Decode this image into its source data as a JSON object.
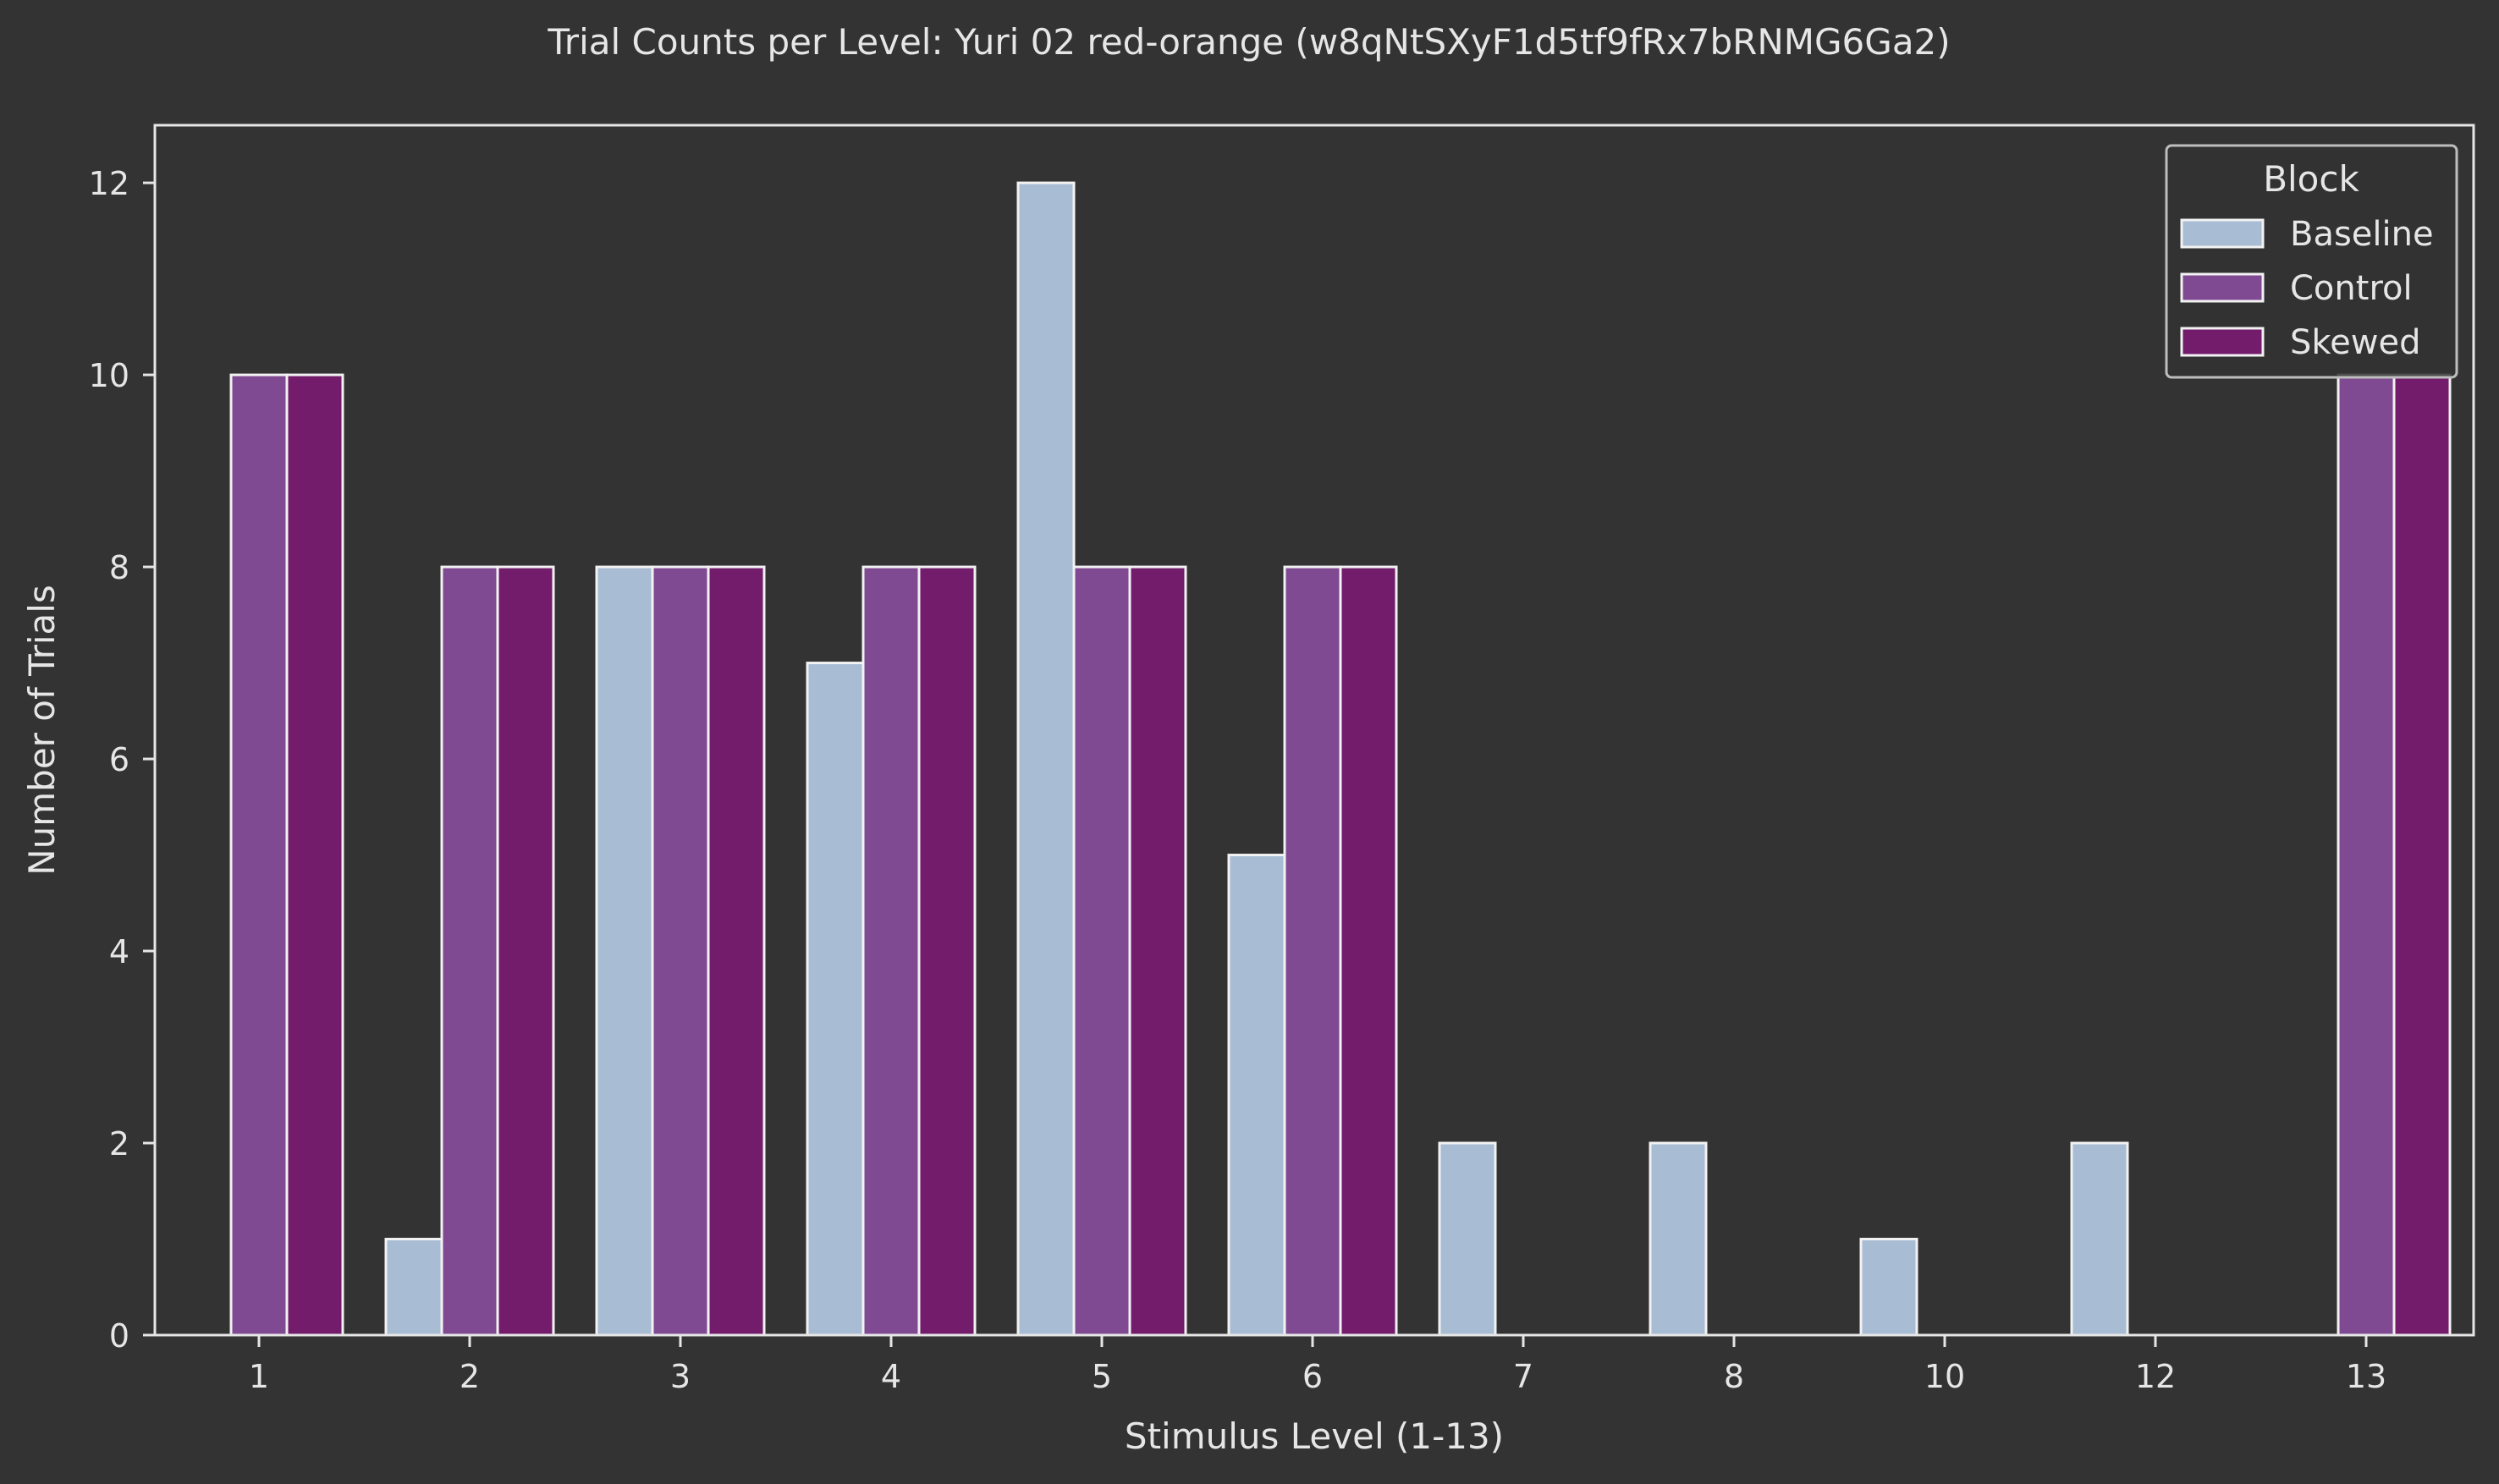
{
  "chart_data": {
    "type": "bar",
    "title": "Trial Counts per Level: Yuri 02 red-orange (w8qNtSXyF1d5tf9fRx7bRNMG6Ga2)",
    "xlabel": "Stimulus Level (1-13)",
    "ylabel": "Number of Trials",
    "categories": [
      "1",
      "2",
      "3",
      "4",
      "5",
      "6",
      "7",
      "8",
      "10",
      "12",
      "13"
    ],
    "series": [
      {
        "name": "Baseline",
        "color": "#a8bcd4",
        "values": [
          0,
          1,
          8,
          7,
          12,
          5,
          2,
          2,
          1,
          2,
          0
        ]
      },
      {
        "name": "Control",
        "color": "#7f4a91",
        "values": [
          10,
          8,
          8,
          8,
          8,
          8,
          0,
          0,
          0,
          0,
          10
        ]
      },
      {
        "name": "Skewed",
        "color": "#721c6b",
        "values": [
          10,
          8,
          8,
          8,
          8,
          8,
          0,
          0,
          0,
          0,
          10
        ]
      }
    ],
    "ylim": [
      0,
      12.6
    ],
    "yticks": [
      0,
      2,
      4,
      6,
      8,
      10,
      12
    ],
    "grid": false,
    "legend": {
      "title": "Block",
      "placement": "top-right"
    }
  }
}
